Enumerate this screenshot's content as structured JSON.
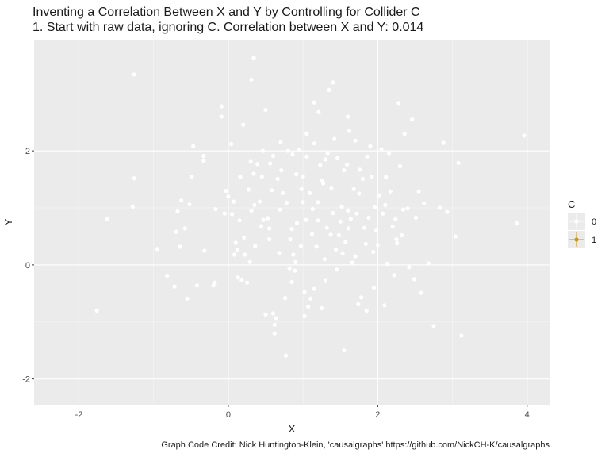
{
  "chart_data": {
    "type": "scatter",
    "title": "Inventing a Correlation Between X and Y by Controlling for Collider C",
    "subtitle": "1. Start with raw data, ignoring C. Correlation between X and Y: 0.014",
    "xlabel": "X",
    "ylabel": "Y",
    "xlim": [
      -2.6,
      4.3
    ],
    "ylim": [
      -2.45,
      3.95
    ],
    "x_ticks": [
      -2,
      0,
      2,
      4
    ],
    "y_ticks": [
      -2,
      0,
      2
    ],
    "grid": true,
    "legend": {
      "title": "C",
      "position": "right",
      "entries": [
        {
          "label": "0",
          "color": "#ffffff"
        },
        {
          "label": "1",
          "color": "#d99100"
        }
      ]
    },
    "caption": "Graph Code Credit: Nick Huntington-Klein, 'causalgraphs' https://github.com/NickCH-K/causalgraphs",
    "point_color": "#ffffff",
    "points": [
      [
        -1.26,
        3.34
      ],
      [
        0.34,
        3.63
      ],
      [
        0.31,
        3.25
      ],
      [
        -1.26,
        1.52
      ],
      [
        -1.28,
        1.02
      ],
      [
        -1.62,
        0.8
      ],
      [
        -1.76,
        -0.8
      ],
      [
        -0.95,
        0.28
      ],
      [
        -0.82,
        -0.19
      ],
      [
        -0.72,
        -0.38
      ],
      [
        -0.7,
        0.58
      ],
      [
        -0.68,
        0.94
      ],
      [
        -0.65,
        0.32
      ],
      [
        -0.63,
        1.13
      ],
      [
        -0.58,
        0.64
      ],
      [
        -0.55,
        -0.59
      ],
      [
        -0.52,
        1.06
      ],
      [
        -0.49,
        1.55
      ],
      [
        -0.47,
        2.08
      ],
      [
        -0.42,
        -0.36
      ],
      [
        -0.33,
        1.91
      ],
      [
        -0.32,
        0.25
      ],
      [
        -0.33,
        1.83
      ],
      [
        -0.17,
        0.98
      ],
      [
        -0.18,
        -0.31
      ],
      [
        -0.2,
        -0.36
      ],
      [
        -0.09,
        2.78
      ],
      [
        -0.09,
        2.6
      ],
      [
        -0.03,
        1.3
      ],
      [
        0.0,
        1.2
      ],
      [
        0.04,
        2.12
      ],
      [
        0.05,
        0.89
      ],
      [
        0.07,
        1.11
      ],
      [
        0.08,
        0.18
      ],
      [
        0.1,
        0.39
      ],
      [
        0.12,
        0.27
      ],
      [
        0.13,
        -0.22
      ],
      [
        0.16,
        1.54
      ],
      [
        0.18,
        -0.27
      ],
      [
        0.2,
        2.46
      ],
      [
        0.21,
        0.48
      ],
      [
        0.22,
        0.18
      ],
      [
        0.25,
        -0.31
      ],
      [
        0.27,
        1.32
      ],
      [
        0.29,
        0.05
      ],
      [
        0.3,
        1.81
      ],
      [
        0.31,
        0.95
      ],
      [
        0.34,
        1.6
      ],
      [
        0.36,
        0.33
      ],
      [
        0.39,
        1.77
      ],
      [
        0.42,
        1.11
      ],
      [
        0.44,
        0.68
      ],
      [
        0.46,
        2.0
      ],
      [
        0.47,
        0.79
      ],
      [
        0.5,
        2.72
      ],
      [
        0.5,
        -0.87
      ],
      [
        0.53,
        0.82
      ],
      [
        0.55,
        0.64
      ],
      [
        0.56,
        1.78
      ],
      [
        0.58,
        1.31
      ],
      [
        0.6,
        1.91
      ],
      [
        0.62,
        -1.05
      ],
      [
        0.64,
        -0.93
      ],
      [
        0.66,
        1.51
      ],
      [
        0.68,
        0.21
      ],
      [
        0.69,
        0.97
      ],
      [
        0.71,
        1.66
      ],
      [
        0.73,
        1.26
      ],
      [
        0.76,
        -0.58
      ],
      [
        0.78,
        1.09
      ],
      [
        0.8,
        2.0
      ],
      [
        0.82,
        -0.06
      ],
      [
        0.83,
        0.45
      ],
      [
        0.85,
        0.63
      ],
      [
        0.86,
        1.94
      ],
      [
        0.87,
        0.18
      ],
      [
        0.89,
        -0.1
      ],
      [
        0.91,
        1.59
      ],
      [
        0.92,
        0.73
      ],
      [
        0.95,
        2.02
      ],
      [
        0.97,
        0.33
      ],
      [
        0.98,
        1.33
      ],
      [
        1.0,
        1.1
      ],
      [
        1.02,
        -0.48
      ],
      [
        1.04,
        0.79
      ],
      [
        1.05,
        1.9
      ],
      [
        1.07,
        -0.73
      ],
      [
        1.09,
        1.26
      ],
      [
        1.1,
        -0.59
      ],
      [
        1.12,
        0.54
      ],
      [
        1.13,
        0.98
      ],
      [
        1.15,
        2.13
      ],
      [
        1.18,
        0.32
      ],
      [
        1.2,
        0.78
      ],
      [
        1.21,
        2.68
      ],
      [
        1.23,
        1.75
      ],
      [
        1.25,
        -0.76
      ],
      [
        1.27,
        1.43
      ],
      [
        1.29,
        0.1
      ],
      [
        1.3,
        -0.28
      ],
      [
        1.32,
        0.65
      ],
      [
        1.33,
        1.96
      ],
      [
        1.35,
        3.07
      ],
      [
        1.37,
        0.53
      ],
      [
        1.38,
        1.34
      ],
      [
        1.4,
        0.91
      ],
      [
        1.42,
        2.21
      ],
      [
        1.44,
        0.27
      ],
      [
        1.46,
        1.87
      ],
      [
        1.48,
        0.52
      ],
      [
        1.5,
        0.76
      ],
      [
        1.52,
        1.02
      ],
      [
        1.53,
        0.2
      ],
      [
        1.55,
        1.66
      ],
      [
        1.57,
        0.4
      ],
      [
        1.59,
        1.76
      ],
      [
        1.61,
        0.64
      ],
      [
        1.62,
        2.35
      ],
      [
        1.64,
        0.81
      ],
      [
        1.66,
        0.04
      ],
      [
        1.68,
        1.33
      ],
      [
        1.7,
        2.18
      ],
      [
        1.72,
        0.9
      ],
      [
        1.74,
        -0.69
      ],
      [
        1.76,
        1.67
      ],
      [
        1.78,
        -0.57
      ],
      [
        1.8,
        1.51
      ],
      [
        1.82,
        0.65
      ],
      [
        1.84,
        0.37
      ],
      [
        1.86,
        1.9
      ],
      [
        1.88,
        0.83
      ],
      [
        1.9,
        2.08
      ],
      [
        1.92,
        1.55
      ],
      [
        1.94,
        0.23
      ],
      [
        1.96,
        1.01
      ],
      [
        1.98,
        0.6
      ],
      [
        2.0,
        0.35
      ],
      [
        2.02,
        1.22
      ],
      [
        2.05,
        2.03
      ],
      [
        2.07,
        0.9
      ],
      [
        2.09,
        -0.71
      ],
      [
        2.11,
        1.54
      ],
      [
        2.13,
        0.02
      ],
      [
        2.15,
        1.96
      ],
      [
        2.17,
        1.29
      ],
      [
        2.2,
        0.67
      ],
      [
        2.22,
        -0.18
      ],
      [
        2.24,
        0.8
      ],
      [
        2.26,
        0.38
      ],
      [
        2.28,
        2.84
      ],
      [
        2.3,
        1.73
      ],
      [
        2.32,
        0.52
      ],
      [
        2.34,
        0.97
      ],
      [
        2.36,
        2.3
      ],
      [
        2.4,
        0.99
      ],
      [
        2.42,
        -0.04
      ],
      [
        2.46,
        2.55
      ],
      [
        2.49,
        -0.25
      ],
      [
        2.51,
        0.83
      ],
      [
        2.55,
        1.29
      ],
      [
        2.58,
        -0.49
      ],
      [
        2.62,
        1.08
      ],
      [
        2.68,
        0.03
      ],
      [
        2.75,
        -1.07
      ],
      [
        2.83,
        1.0
      ],
      [
        2.88,
        2.14
      ],
      [
        2.93,
        0.93
      ],
      [
        3.04,
        0.5
      ],
      [
        3.08,
        1.79
      ],
      [
        3.12,
        -1.24
      ],
      [
        3.86,
        0.73
      ],
      [
        3.96,
        2.27
      ],
      [
        1.55,
        -1.5
      ],
      [
        0.77,
        -1.59
      ],
      [
        0.6,
        -0.85
      ],
      [
        1.15,
        -0.42
      ],
      [
        1.45,
        -0.08
      ],
      [
        1.95,
        -0.4
      ],
      [
        2.25,
        0.45
      ],
      [
        0.35,
        1.05
      ],
      [
        0.15,
        0.78
      ],
      [
        -0.05,
        0.9
      ],
      [
        1.0,
        1.55
      ],
      [
        1.7,
        0.15
      ],
      [
        0.9,
        0.05
      ],
      [
        1.2,
        1.1
      ],
      [
        0.55,
        0.45
      ],
      [
        1.6,
        0.95
      ],
      [
        2.1,
        1.05
      ],
      [
        0.45,
        1.55
      ],
      [
        1.3,
        1.85
      ],
      [
        0.7,
        2.15
      ],
      [
        1.05,
        2.3
      ],
      [
        1.75,
        1.25
      ],
      [
        1.25,
        1.48
      ],
      [
        0.85,
        -0.3
      ],
      [
        1.4,
        3.2
      ],
      [
        1.6,
        2.6
      ],
      [
        1.15,
        2.85
      ],
      [
        0.62,
        -1.2
      ],
      [
        1.02,
        -0.9
      ],
      [
        1.85,
        -0.8
      ]
    ]
  }
}
